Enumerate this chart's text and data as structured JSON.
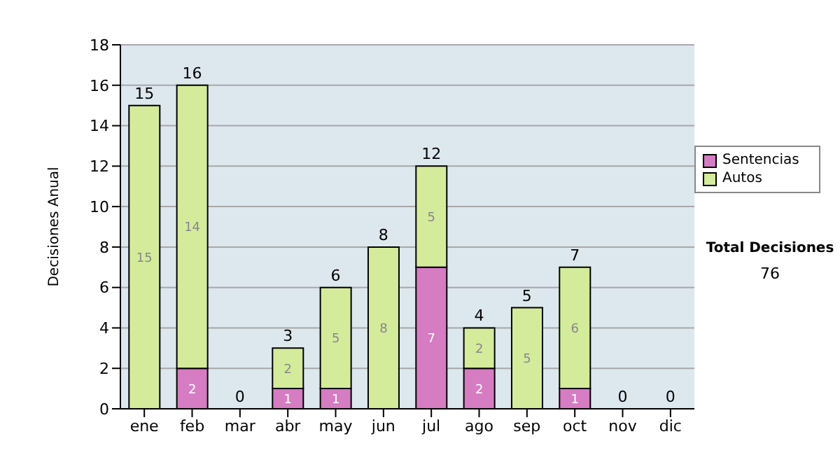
{
  "chart_data": {
    "type": "bar",
    "stacked": true,
    "ylabel": "Decisiones Anual",
    "categories": [
      "ene",
      "feb",
      "mar",
      "abr",
      "may",
      "jun",
      "jul",
      "ago",
      "sep",
      "oct",
      "nov",
      "dic"
    ],
    "series": [
      {
        "name": "Sentencias",
        "color": "#d57cc2",
        "values": [
          0,
          2,
          0,
          1,
          1,
          0,
          7,
          2,
          0,
          1,
          0,
          0
        ],
        "value_labels": [
          null,
          "2",
          null,
          "1",
          "1",
          null,
          "7",
          "2",
          null,
          "1",
          null,
          null
        ]
      },
      {
        "name": "Autos",
        "color": "#d4eb9c",
        "values": [
          15,
          14,
          0,
          2,
          5,
          8,
          5,
          2,
          5,
          6,
          0,
          0
        ],
        "value_labels": [
          "15",
          "14",
          null,
          "2",
          "5",
          "8",
          "5",
          "2",
          "5",
          "6",
          null,
          null
        ]
      }
    ],
    "totals": [
      "15",
      "16",
      "0",
      "3",
      "6",
      "8",
      "12",
      "4",
      "5",
      "7",
      "0",
      "0"
    ],
    "ylim": [
      0,
      18
    ],
    "yticks": [
      0,
      2,
      4,
      6,
      8,
      10,
      12,
      14,
      16,
      18
    ],
    "grid": "y",
    "legend": "right",
    "annotations": [
      "Total Decisiones",
      "76"
    ]
  }
}
